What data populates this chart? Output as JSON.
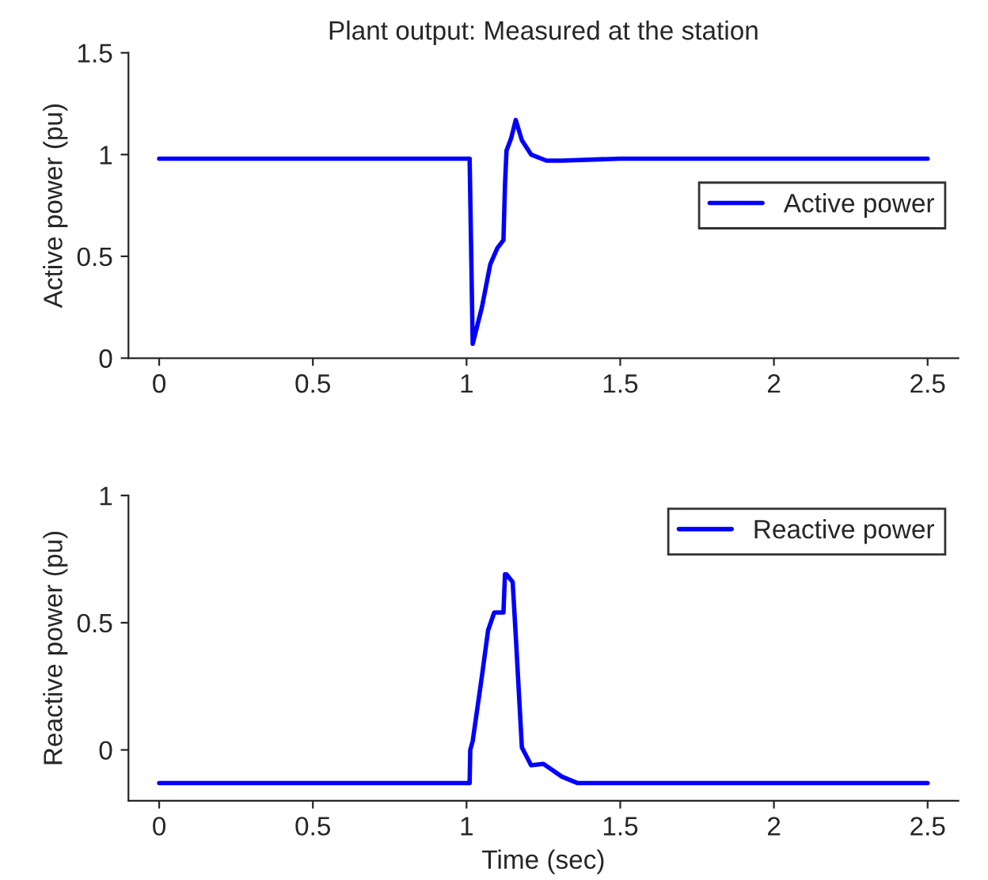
{
  "chart_data": [
    {
      "type": "line",
      "title": "Plant output: Measured at the station",
      "ylabel": "Active power (pu)",
      "xlim": [
        -0.1,
        2.6
      ],
      "xticks": [
        0,
        0.5,
        1,
        1.5,
        2,
        2.5
      ],
      "ylim": [
        0,
        1.5
      ],
      "yticks": [
        0,
        0.5,
        1,
        1.5
      ],
      "grid": false,
      "legend": "right",
      "series": [
        {
          "name": "Active power",
          "color": "#0000ff",
          "x": [
            0,
            0.5,
            1.0,
            1.01,
            1.02,
            1.05,
            1.077,
            1.1,
            1.12,
            1.125,
            1.13,
            1.145,
            1.16,
            1.18,
            1.21,
            1.26,
            1.31,
            1.5,
            2.0,
            2.5
          ],
          "values": [
            0.98,
            0.98,
            0.98,
            0.98,
            0.07,
            0.25,
            0.46,
            0.54,
            0.58,
            0.85,
            1.02,
            1.08,
            1.17,
            1.07,
            1.0,
            0.97,
            0.97,
            0.98,
            0.98,
            0.98
          ]
        }
      ]
    },
    {
      "type": "line",
      "ylabel": "Reactive power (pu)",
      "xlabel": "Time (sec)",
      "xlim": [
        -0.1,
        2.6
      ],
      "xticks": [
        0,
        0.5,
        1,
        1.5,
        2,
        2.5
      ],
      "ylim": [
        -0.2,
        1
      ],
      "yticks": [
        0,
        0.5,
        1
      ],
      "grid": false,
      "legend": "top right",
      "series": [
        {
          "name": "Reactive power",
          "color": "#0000ff",
          "x": [
            0,
            0.5,
            1.0,
            1.01,
            1.012,
            1.02,
            1.05,
            1.07,
            1.09,
            1.12,
            1.125,
            1.13,
            1.15,
            1.16,
            1.18,
            1.21,
            1.25,
            1.31,
            1.36,
            2.0,
            2.5
          ],
          "values": [
            -0.13,
            -0.13,
            -0.13,
            -0.13,
            0.0,
            0.035,
            0.29,
            0.47,
            0.54,
            0.54,
            0.69,
            0.69,
            0.66,
            0.45,
            0.01,
            -0.06,
            -0.055,
            -0.105,
            -0.13,
            -0.13,
            -0.13
          ]
        }
      ]
    }
  ]
}
